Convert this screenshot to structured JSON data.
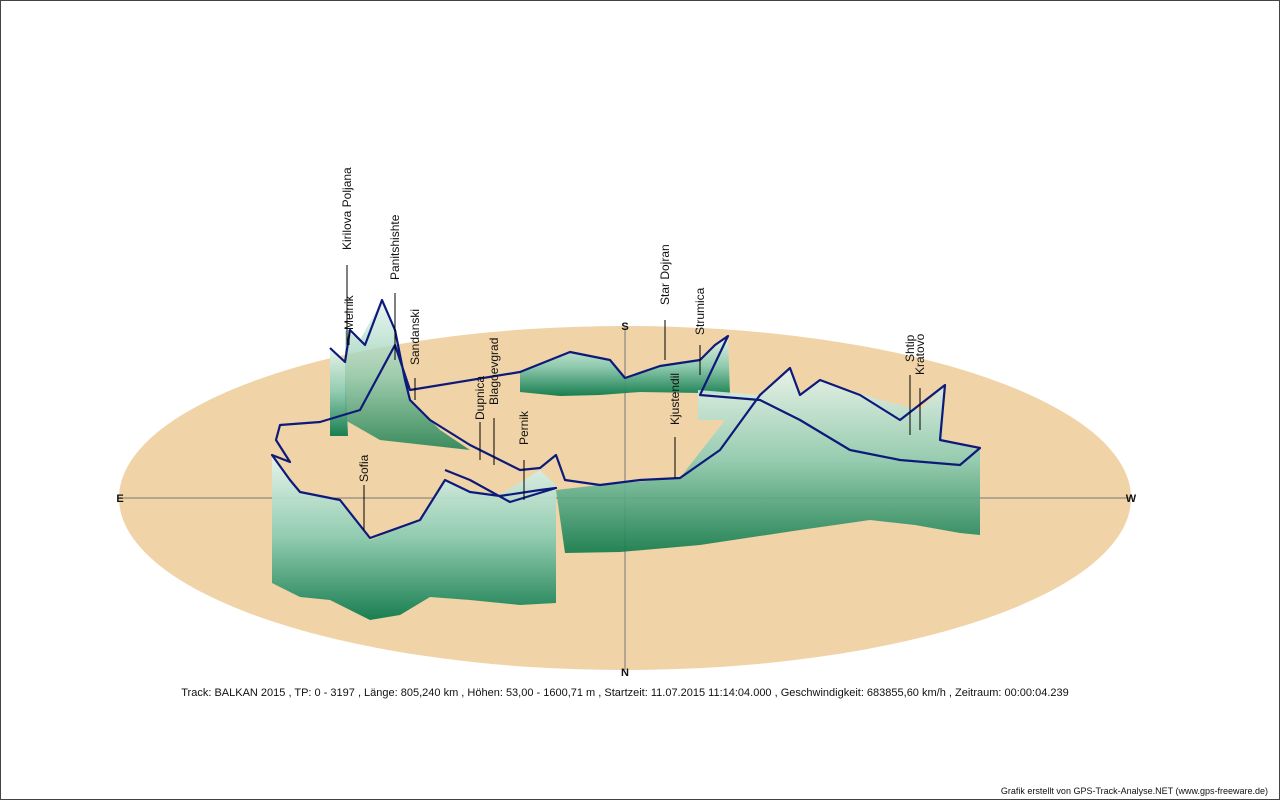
{
  "compass": {
    "east": "E",
    "south": "S",
    "west": "W",
    "north": "N"
  },
  "places": [
    {
      "label": "Kirilova Poljana"
    },
    {
      "label": "Melnik"
    },
    {
      "label": "Panitshishte"
    },
    {
      "label": "Sandanski"
    },
    {
      "label": "Dupnica"
    },
    {
      "label": "Blagoevgrad"
    },
    {
      "label": "Pernik"
    },
    {
      "label": "Sofia"
    },
    {
      "label": "Star Dojran"
    },
    {
      "label": "Strumica"
    },
    {
      "label": "Kjustendil"
    },
    {
      "label": "Shtip"
    },
    {
      "label": "Kratovo"
    }
  ],
  "footer": {
    "info": "Track: BALKAN 2015  ,  TP: 0 - 3197  ,  Länge: 805,240 km  ,  Höhen: 53,00 - 1600,71 m  ,  Startzeit: 11.07.2015 11:14:04.000  ,  Geschwindigkeit: 683855,60 km/h  ,  Zeitraum: 00:00:04.239",
    "credit": "Grafik erstellt von GPS-Track-Analyse.NET (www.gps-freeware.de)"
  }
}
